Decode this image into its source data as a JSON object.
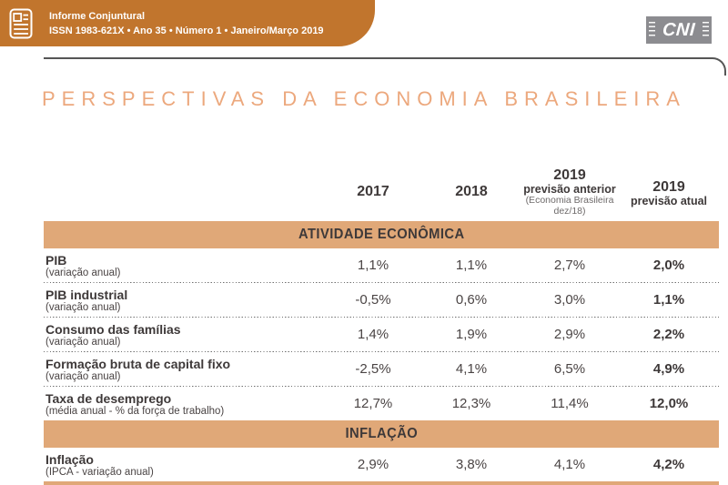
{
  "masthead": {
    "title": "Informe Conjuntural",
    "subtitle": "ISSN 1983-621X • Ano 35 • Número 1 • Janeiro/Março 2019",
    "logo": "CNI"
  },
  "page_title": "PERSPECTIVAS DA ECONOMIA BRASILEIRA",
  "table": {
    "columns": [
      {
        "line1": "2017"
      },
      {
        "line1": "2018"
      },
      {
        "line1": "2019",
        "line2": "previsão anterior",
        "note1": "(Economia Brasileira",
        "note2": "dez/18)"
      },
      {
        "line1": "2019",
        "line2": "previsão atual"
      }
    ],
    "sections": [
      {
        "header": "ATIVIDADE ECONÔMICA",
        "rows": [
          {
            "label": "PIB",
            "sublabel": "(variação anual)",
            "values": [
              "1,1%",
              "1,1%",
              "2,7%",
              "2,0%"
            ]
          },
          {
            "label": "PIB industrial",
            "sublabel": "(variação anual)",
            "values": [
              "-0,5%",
              "0,6%",
              "3,0%",
              "1,1%"
            ]
          },
          {
            "label": "Consumo das famílias",
            "sublabel": "(variação anual)",
            "values": [
              "1,4%",
              "1,9%",
              "2,9%",
              "2,2%"
            ]
          },
          {
            "label": "Formação bruta de capital fixo",
            "sublabel": "(variação anual)",
            "values": [
              "-2,5%",
              "4,1%",
              "6,5%",
              "4,9%"
            ]
          },
          {
            "label": "Taxa de desemprego",
            "sublabel": "(média anual - % da força de trabalho)",
            "values": [
              "12,7%",
              "12,3%",
              "11,4%",
              "12,0%"
            ]
          }
        ]
      },
      {
        "header": "INFLAÇÃO",
        "rows": [
          {
            "label": "Inflação",
            "sublabel": "(IPCA - variação anual)",
            "values": [
              "2,9%",
              "3,8%",
              "4,1%",
              "4,2%"
            ]
          }
        ]
      }
    ]
  },
  "colors": {
    "masthead_band": "#C1752D",
    "section_band": "#E0A878",
    "title_text": "#ECA87D",
    "dark_text": "#3E3939",
    "logo_gray": "#8C8C90",
    "rule_gray": "#565656"
  }
}
